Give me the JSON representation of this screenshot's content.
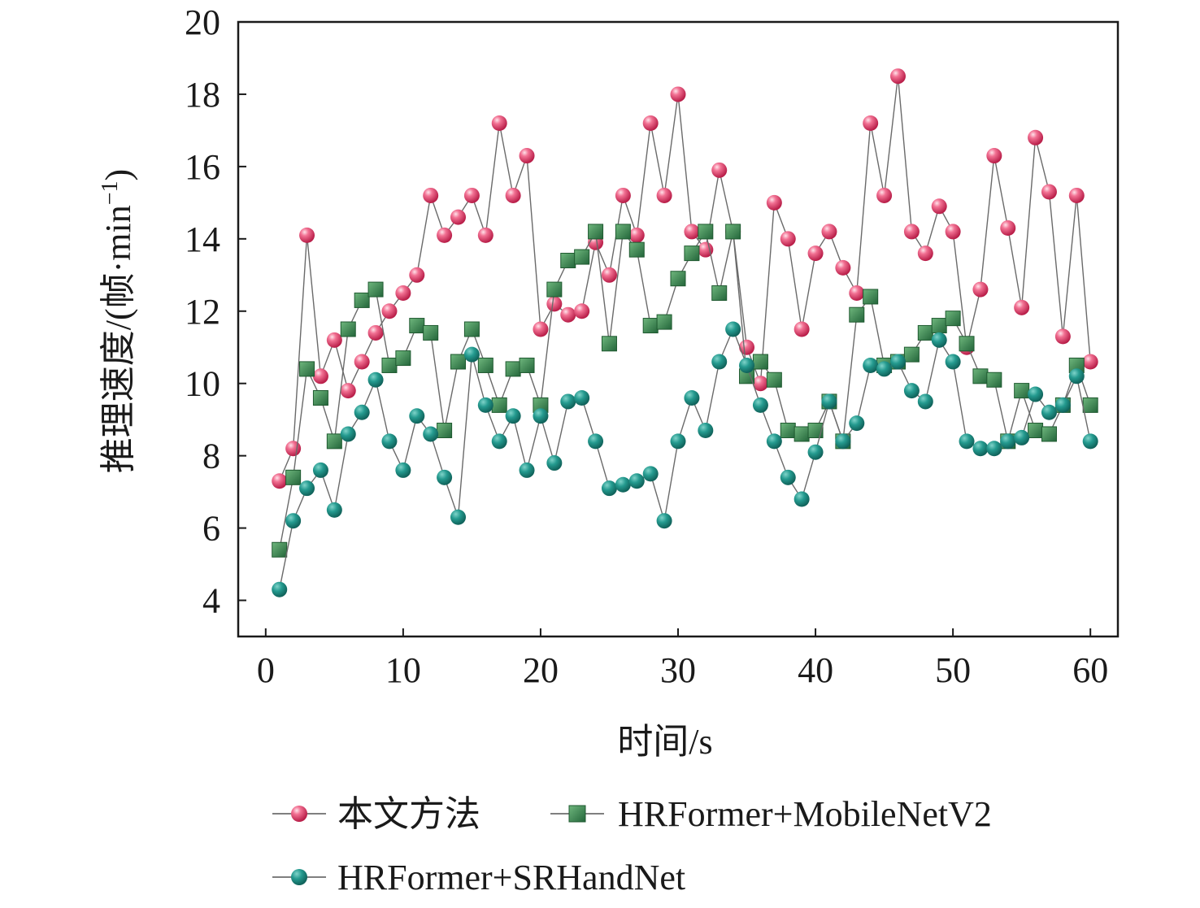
{
  "chart_data": {
    "type": "line",
    "xlabel": "时间/s",
    "ylabel_main": "推理速度/(帧·min",
    "ylabel_sup": "−1",
    "ylabel_close": ")",
    "xlim": [
      -2,
      62
    ],
    "ylim": [
      3,
      20
    ],
    "xticks": [
      0,
      10,
      20,
      30,
      40,
      50,
      60
    ],
    "yticks": [
      4,
      6,
      8,
      10,
      12,
      14,
      16,
      18,
      20
    ],
    "grid": false,
    "legend_position": "bottom",
    "x": [
      1,
      2,
      3,
      4,
      5,
      6,
      7,
      8,
      9,
      10,
      11,
      12,
      13,
      14,
      15,
      16,
      17,
      18,
      19,
      20,
      21,
      22,
      23,
      24,
      25,
      26,
      27,
      28,
      29,
      30,
      31,
      32,
      33,
      34,
      35,
      36,
      37,
      38,
      39,
      40,
      41,
      42,
      43,
      44,
      45,
      46,
      47,
      48,
      49,
      50,
      51,
      52,
      53,
      54,
      55,
      56,
      57,
      58,
      59,
      60
    ],
    "series": [
      {
        "name": "本文方法",
        "marker": "sphere",
        "color": "#e8406a",
        "values": [
          7.3,
          8.2,
          14.1,
          10.2,
          11.2,
          9.8,
          10.6,
          11.4,
          12.0,
          12.5,
          13.0,
          15.2,
          14.1,
          14.6,
          15.2,
          14.1,
          17.2,
          15.2,
          16.3,
          11.5,
          12.2,
          11.9,
          12.0,
          13.9,
          13.0,
          15.2,
          14.1,
          17.2,
          15.2,
          18.0,
          14.2,
          13.7,
          15.9,
          14.2,
          11.0,
          10.0,
          15.0,
          14.0,
          11.5,
          13.6,
          14.2,
          13.2,
          12.5,
          17.2,
          15.2,
          18.5,
          14.2,
          13.6,
          14.9,
          14.2,
          11.0,
          12.6,
          16.3,
          14.3,
          12.1,
          16.8,
          15.3,
          11.3,
          15.2,
          10.6
        ]
      },
      {
        "name": "HRFormer+MobileNetV2",
        "marker": "square",
        "color": "#3d8a4f",
        "values": [
          5.4,
          7.4,
          10.4,
          9.6,
          8.4,
          11.5,
          12.3,
          12.6,
          10.5,
          10.7,
          11.6,
          11.4,
          8.7,
          10.6,
          11.5,
          10.5,
          9.4,
          10.4,
          10.5,
          9.4,
          12.6,
          13.4,
          13.5,
          14.2,
          11.1,
          14.2,
          13.7,
          11.6,
          11.7,
          12.9,
          13.6,
          14.2,
          12.5,
          14.2,
          10.2,
          10.6,
          10.1,
          8.7,
          8.6,
          8.7,
          9.5,
          8.4,
          11.9,
          12.4,
          10.5,
          10.6,
          10.8,
          11.4,
          11.6,
          11.8,
          11.1,
          10.2,
          10.1,
          8.4,
          9.8,
          8.7,
          8.6,
          9.4,
          10.5,
          9.4
        ]
      },
      {
        "name": "HRFormer+SRHandNet",
        "marker": "circle",
        "color": "#1f8f86",
        "values": [
          4.3,
          6.2,
          7.1,
          7.6,
          6.5,
          8.6,
          9.2,
          10.1,
          8.4,
          7.6,
          9.1,
          8.6,
          7.4,
          6.3,
          10.8,
          9.4,
          8.4,
          9.1,
          7.6,
          9.1,
          7.8,
          9.5,
          9.6,
          8.4,
          7.1,
          7.2,
          7.3,
          7.5,
          6.2,
          8.4,
          9.6,
          8.7,
          10.6,
          11.5,
          10.5,
          9.4,
          8.4,
          7.4,
          6.8,
          8.1,
          9.5,
          8.4,
          8.9,
          10.5,
          10.4,
          10.6,
          9.8,
          9.5,
          11.2,
          10.6,
          8.4,
          8.2,
          8.2,
          8.4,
          8.5,
          9.7,
          9.2,
          9.4,
          10.2,
          8.4
        ]
      }
    ]
  }
}
